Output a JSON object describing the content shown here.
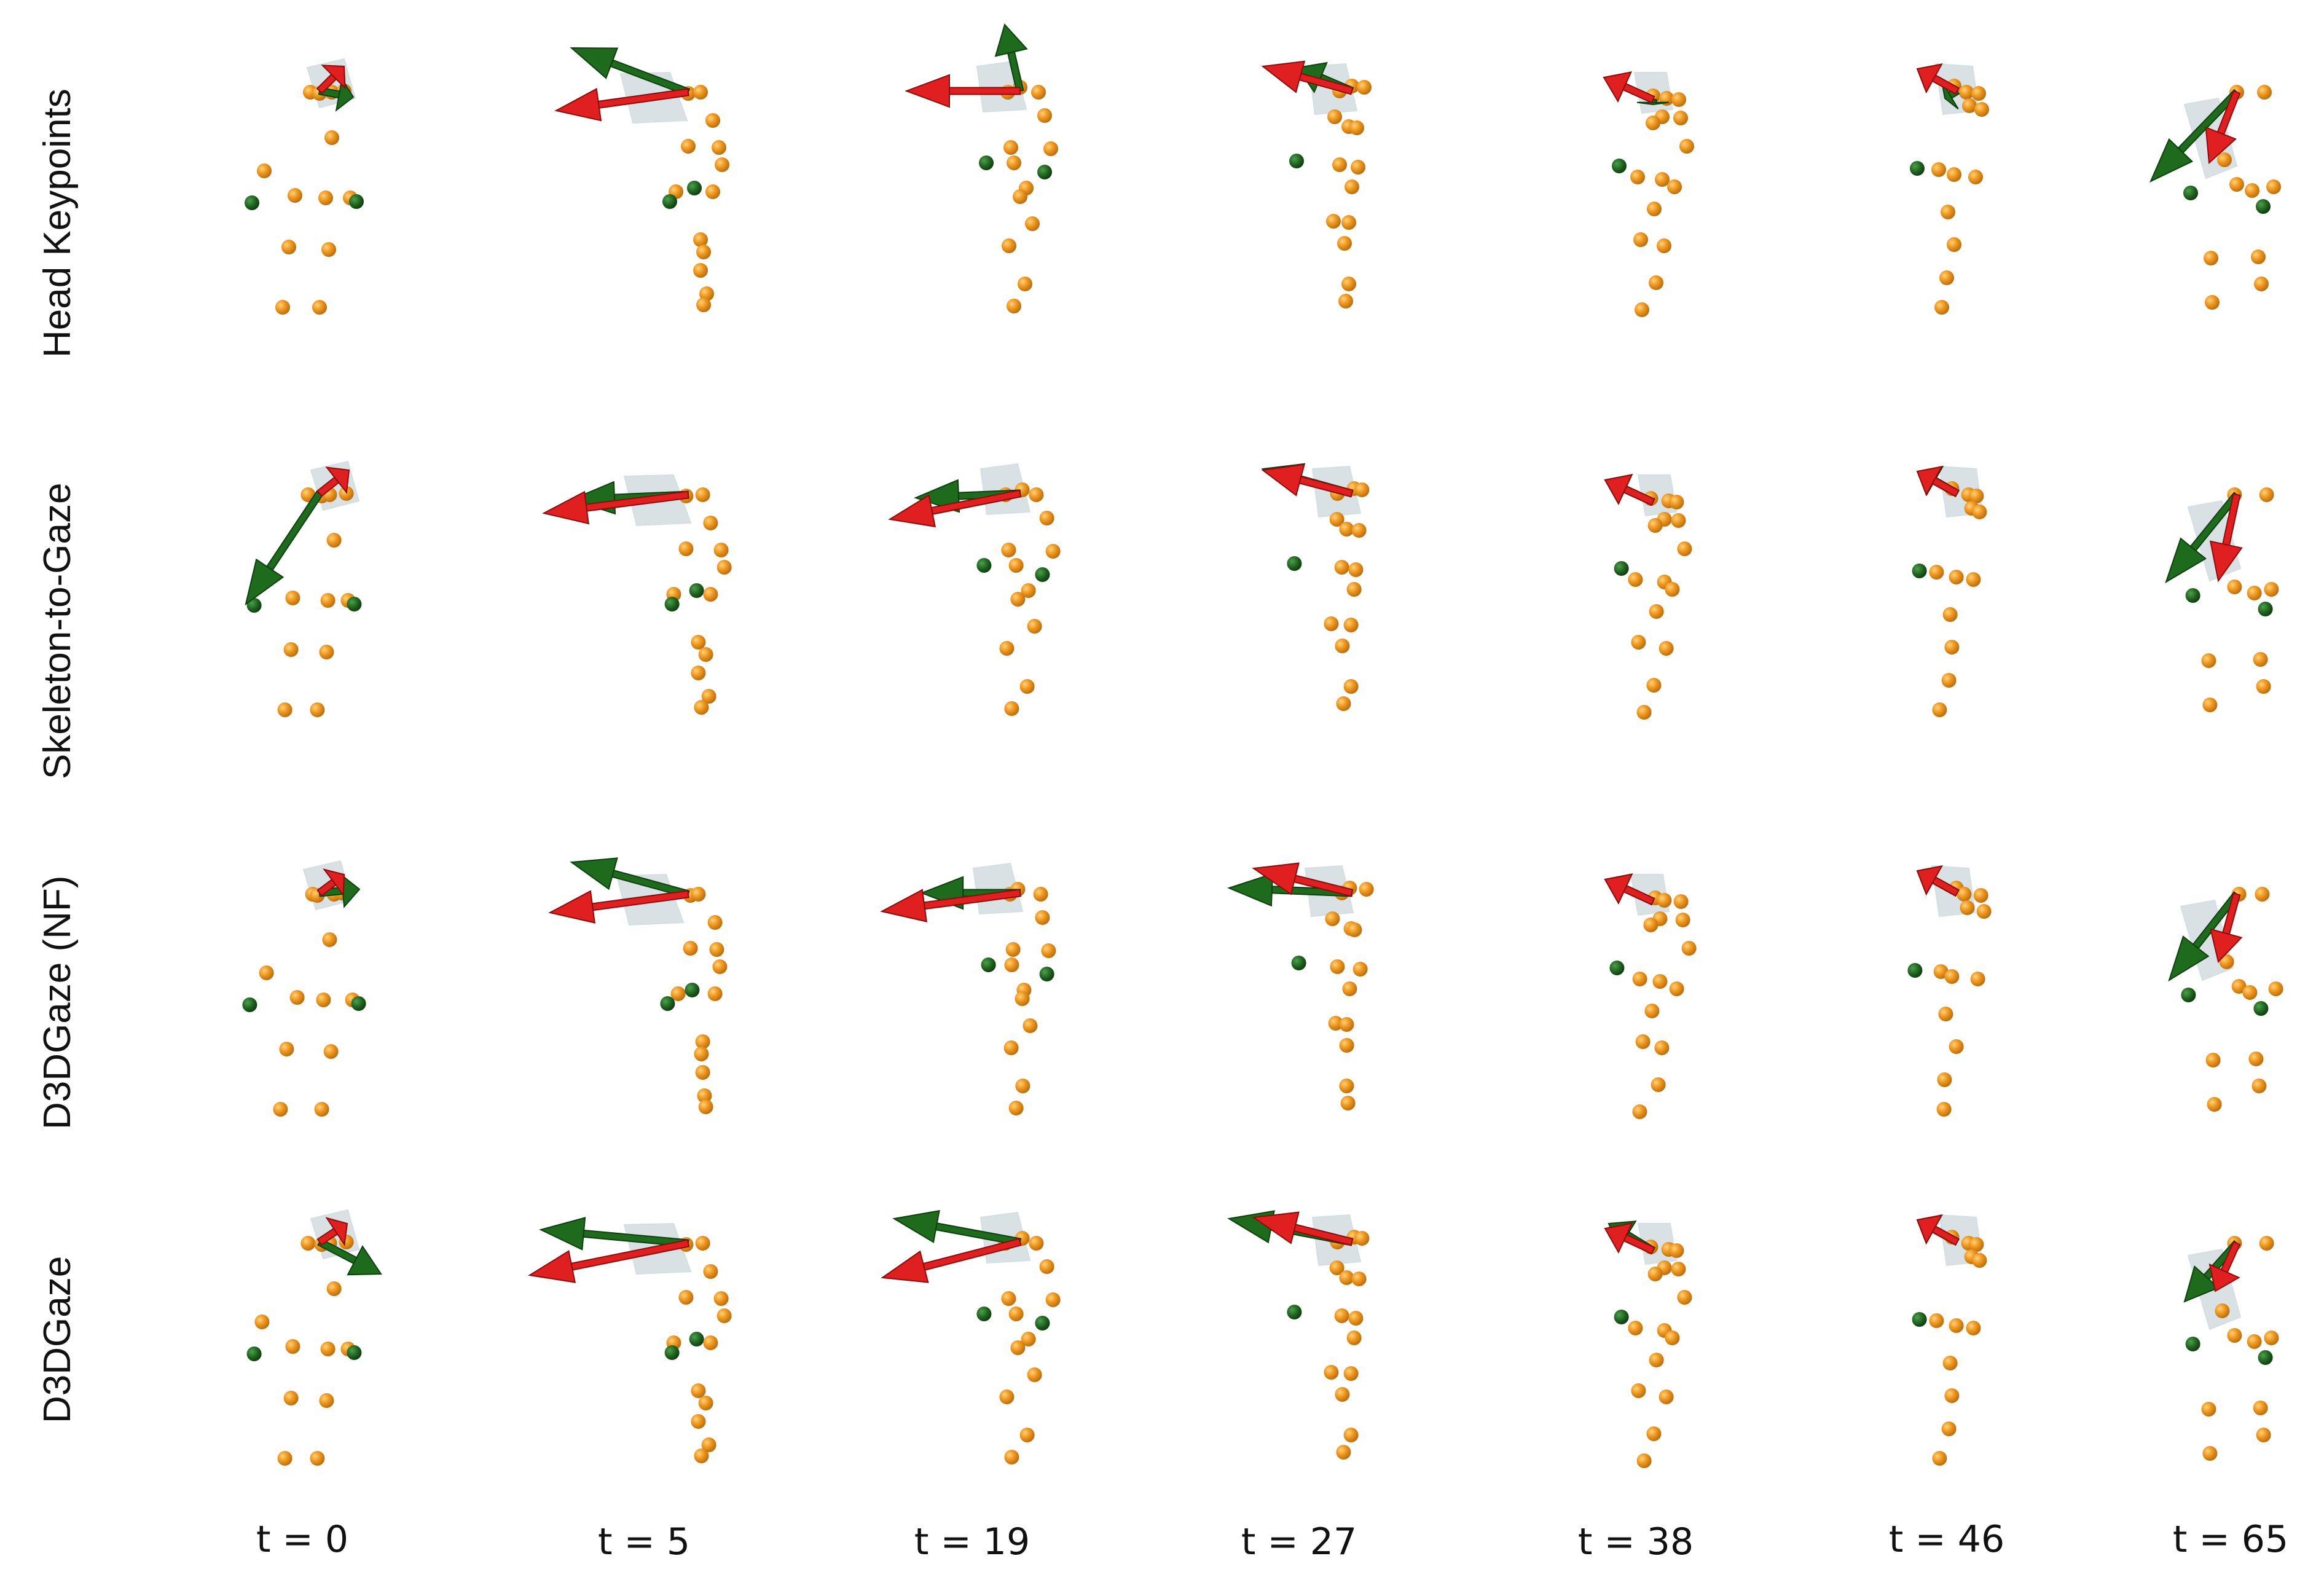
{
  "rows": [
    {
      "label": "Head Keypoints"
    },
    {
      "label": "Skeleton-to-Gaze"
    },
    {
      "label": "D3DGaze (NF)"
    },
    {
      "label": "D3DGaze"
    }
  ],
  "columns": [
    {
      "label": "t = 0"
    },
    {
      "label": "t = 5"
    },
    {
      "label": "t = 19"
    },
    {
      "label": "t = 27"
    },
    {
      "label": "t = 38"
    },
    {
      "label": "t = 46"
    },
    {
      "label": "t = 65"
    }
  ],
  "colors": {
    "keypoint": "#e8901e",
    "keypoint_edge": "#b86a0c",
    "marker": "#1e5a1e",
    "gaze_true": "#e02020",
    "gaze_pred": "#1e6b1e",
    "uncertainty": "#b9c8cf"
  }
}
